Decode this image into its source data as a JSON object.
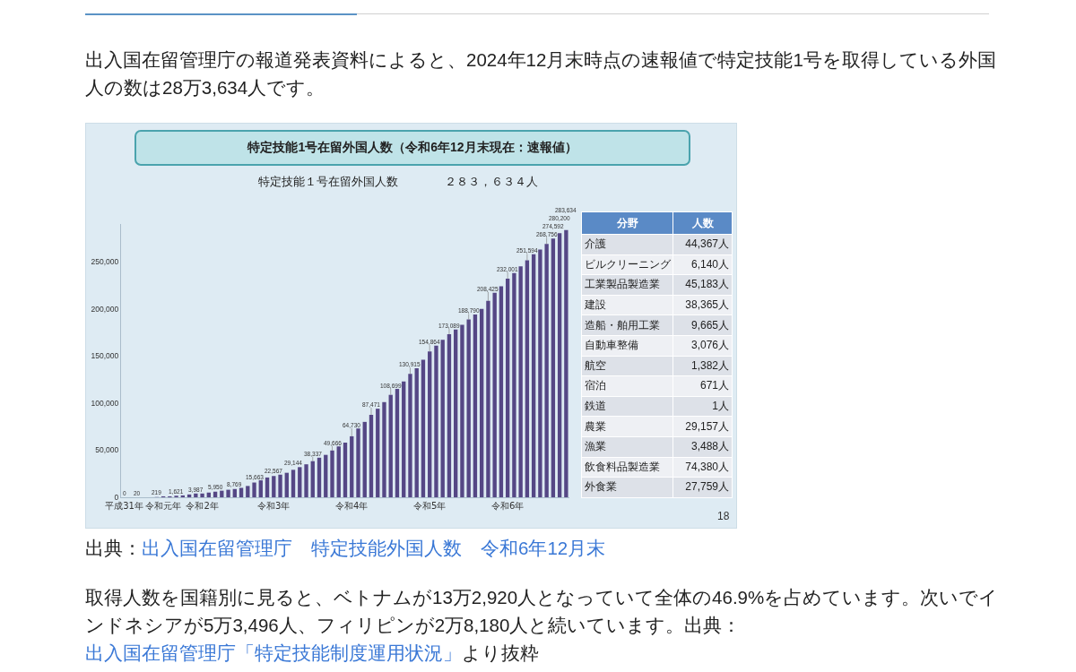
{
  "chart_data": [
    {
      "type": "bar",
      "title": "特定技能1号在留外国人数（令和6年12月末現在：速報値）",
      "subtitle": "特定技能１号在留外国人数　　　　２８３，６３４人",
      "annotations": [
        "出入国在留管理庁の報道発表資料によると、2024年12月末時点の速報値で特定技能1号を取得している外国人の数は28万3,634人です。",
        "出典：",
        "出入国在留管理庁　特定技能外国人数　令和6年12月末",
        "取得人数を国籍別に見ると、ベトナムが13万2,920人となっていて全体の46.9%を占めています。次いでインドネシアが5万3,496人、フィリピンが2万8,180人と続いています。出典：",
        "出入国在留管理庁「特定技能制度運用状況」",
        "より抜粋",
        "18"
      ],
      "categories": [
        "平成31年",
        null,
        null,
        null,
        null,
        null,
        "令和元年",
        null,
        null,
        null,
        null,
        null,
        "令和2年",
        null,
        null,
        null,
        null,
        null,
        null,
        null,
        null,
        null,
        null,
        "令和3年",
        null,
        null,
        null,
        null,
        null,
        null,
        null,
        null,
        null,
        null,
        null,
        "令和4年",
        null,
        null,
        null,
        null,
        null,
        null,
        null,
        null,
        null,
        null,
        null,
        "令和5年",
        null,
        null,
        null,
        null,
        null,
        null,
        null,
        null,
        null,
        null,
        null,
        "令和6年",
        null,
        null,
        null,
        null,
        null,
        null,
        null,
        null,
        null
      ],
      "values": [
        0,
        0,
        20,
        0,
        0,
        219,
        1000,
        1000,
        1621,
        2000,
        3000,
        3987,
        4000,
        5000,
        5950,
        7000,
        8000,
        8769,
        10000,
        12000,
        15663,
        18000,
        21000,
        22567,
        24000,
        26000,
        29144,
        32000,
        35000,
        38337,
        42000,
        45000,
        49666,
        54000,
        58000,
        64730,
        73000,
        80000,
        87471,
        94000,
        101000,
        108699,
        115000,
        123000,
        130915,
        137000,
        146000,
        154864,
        161000,
        167000,
        173089,
        178000,
        183000,
        188790,
        194000,
        200000,
        208425,
        217000,
        224000,
        232001,
        238000,
        245000,
        251594,
        258000,
        263000,
        268756,
        274592,
        280200,
        283634
      ],
      "value_labels": [
        "0",
        null,
        "20",
        null,
        null,
        "219",
        null,
        null,
        "1,621",
        null,
        null,
        "3,987",
        null,
        null,
        "5,950",
        null,
        null,
        "8,769",
        null,
        null,
        "15,663",
        null,
        null,
        "22,567",
        null,
        null,
        "29,144",
        null,
        null,
        "38,337",
        null,
        null,
        "49,666",
        null,
        null,
        "64,730",
        null,
        null,
        "87,471",
        null,
        null,
        "108,699",
        null,
        null,
        "130,915",
        null,
        null,
        "154,864",
        null,
        null,
        "173,089",
        null,
        null,
        "188,790",
        null,
        null,
        "208,425",
        null,
        null,
        "232,001",
        null,
        null,
        "251,594",
        null,
        null,
        "268,756",
        "274,592",
        "280,200",
        "283,634"
      ],
      "color": "#554785",
      "ylim": [
        0,
        290000
      ],
      "yticks": [
        0,
        {
          "value": 50000,
          "label": "50,000"
        },
        {
          "value": 100000,
          "label": "100,000"
        },
        {
          "value": 150000,
          "label": "150,000"
        },
        {
          "value": 200000,
          "label": "200,000"
        },
        {
          "value": 250000,
          "label": "250,000"
        }
      ]
    },
    {
      "type": "other",
      "xlabel": "分野",
      "ylabel": "人数",
      "categories": [
        "介護",
        "ビルクリーニング",
        "工業製品製造業",
        "建設",
        "造船・舶用工業",
        "自動車整備",
        "航空",
        "宿泊",
        "鉄道",
        "農業",
        "漁業",
        "飲食料品製造業",
        "外食業"
      ],
      "values": [
        44367,
        6140,
        45183,
        38365,
        9665,
        3076,
        1382,
        671,
        1,
        29157,
        3488,
        74380,
        27759
      ],
      "value_labels": [
        "44,367人",
        "6,140人",
        "45,183人",
        "38,365人",
        "9,665人",
        "3,076人",
        "1,382人",
        "671人",
        "1人",
        "29,157人",
        "3,488人",
        "74,380人",
        "27,759人"
      ]
    }
  ]
}
